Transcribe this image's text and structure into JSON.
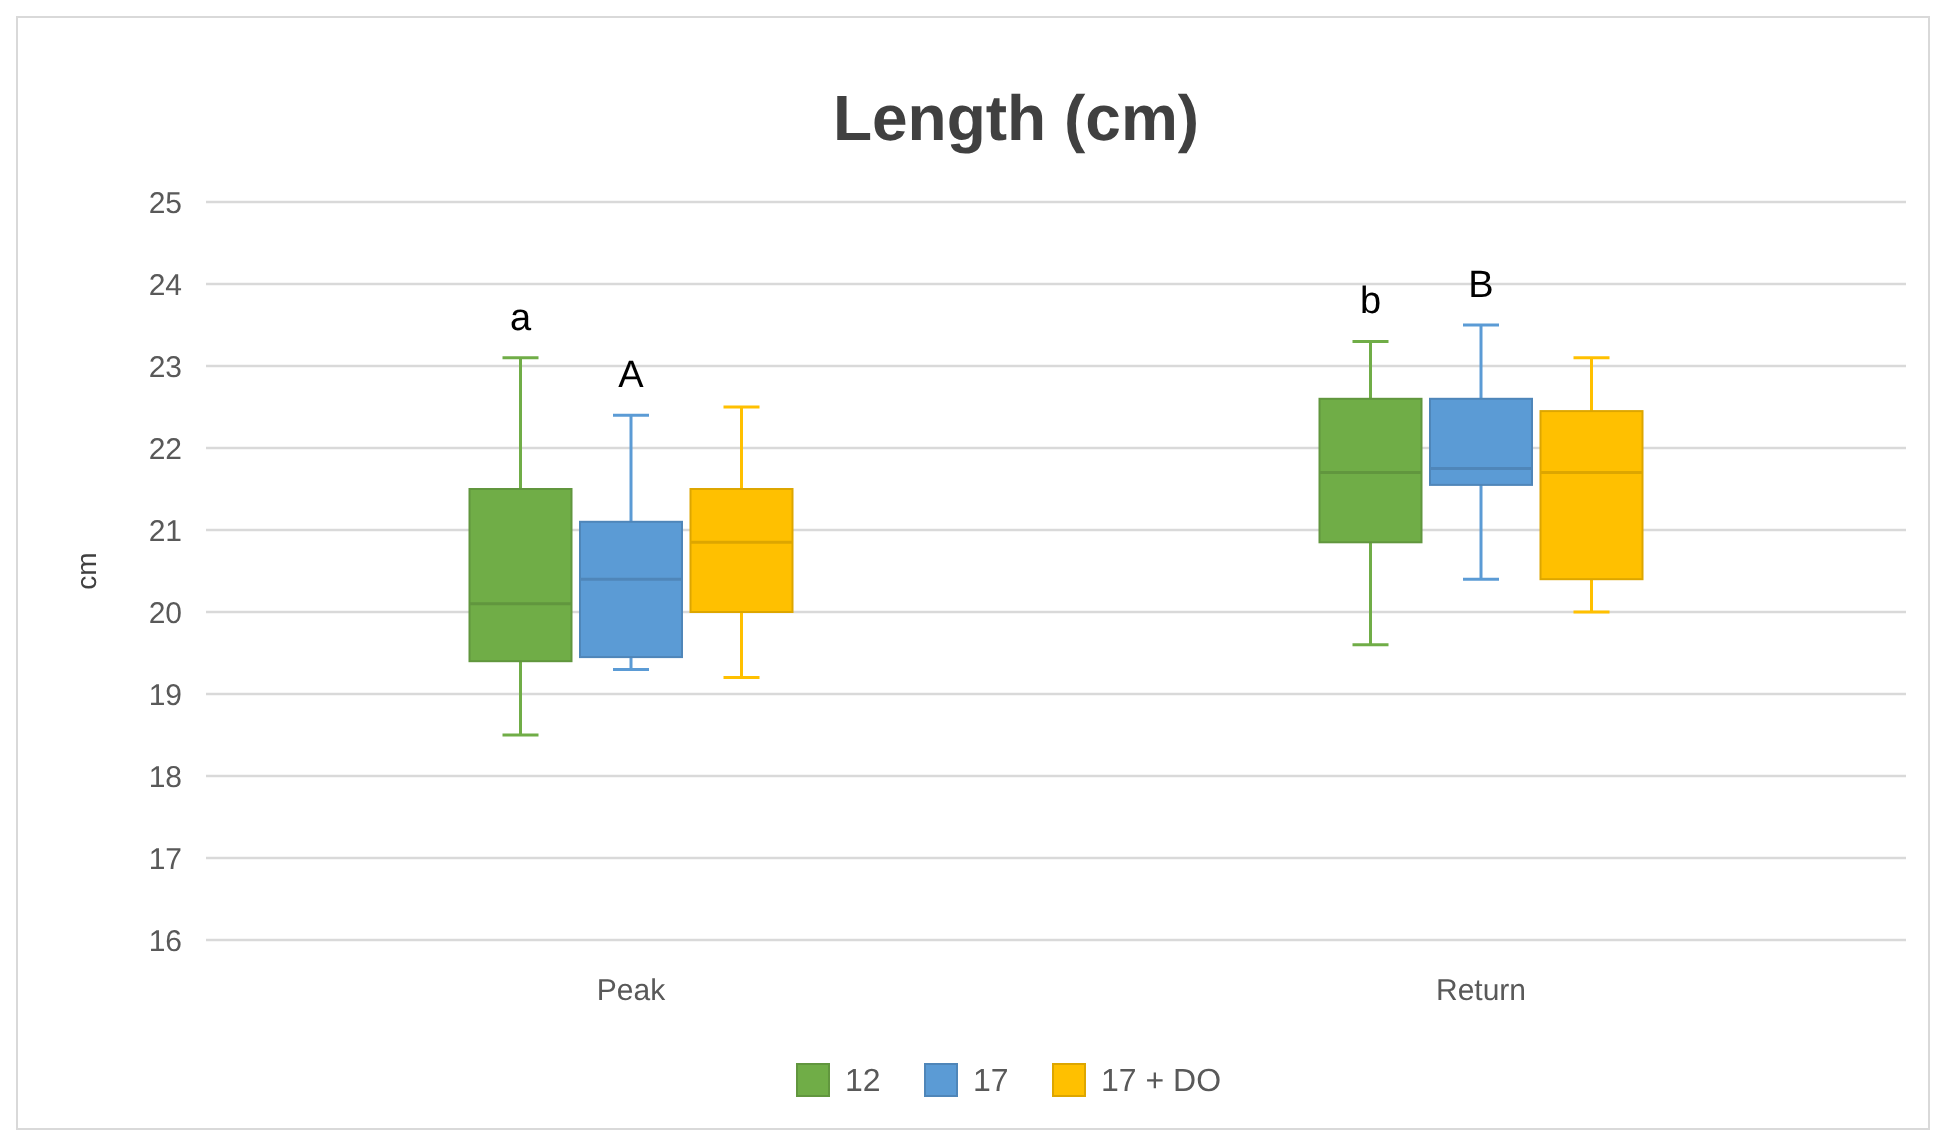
{
  "chart_data": {
    "type": "box",
    "title": "Length (cm)",
    "ylabel": "cm",
    "categories": [
      "Peak",
      "Return"
    ],
    "ylim": [
      16,
      25
    ],
    "yticks": [
      16,
      17,
      18,
      19,
      20,
      21,
      22,
      23,
      24,
      25
    ],
    "grid": "y",
    "legend": "bottom",
    "series": [
      {
        "name": "12",
        "color": "#70ad47",
        "boxes": [
          {
            "low": 18.5,
            "q1": 19.4,
            "median": 20.1,
            "q3": 21.5,
            "high": 23.1
          },
          {
            "low": 19.6,
            "q1": 20.85,
            "median": 21.7,
            "q3": 22.6,
            "high": 23.3
          }
        ]
      },
      {
        "name": "17",
        "color": "#5b9bd5",
        "boxes": [
          {
            "low": 19.3,
            "q1": 19.45,
            "median": 20.4,
            "q3": 21.1,
            "high": 22.4
          },
          {
            "low": 20.4,
            "q1": 21.55,
            "median": 21.75,
            "q3": 22.6,
            "high": 23.5
          }
        ]
      },
      {
        "name": "17 + DO",
        "color": "#ffc000",
        "boxes": [
          {
            "low": 19.2,
            "q1": 20.0,
            "median": 20.85,
            "q3": 21.5,
            "high": 22.5
          },
          {
            "low": 20.0,
            "q1": 20.4,
            "median": 21.7,
            "q3": 22.45,
            "high": 23.1
          }
        ]
      }
    ],
    "annotations": [
      "a",
      "A",
      "b",
      "B"
    ]
  }
}
